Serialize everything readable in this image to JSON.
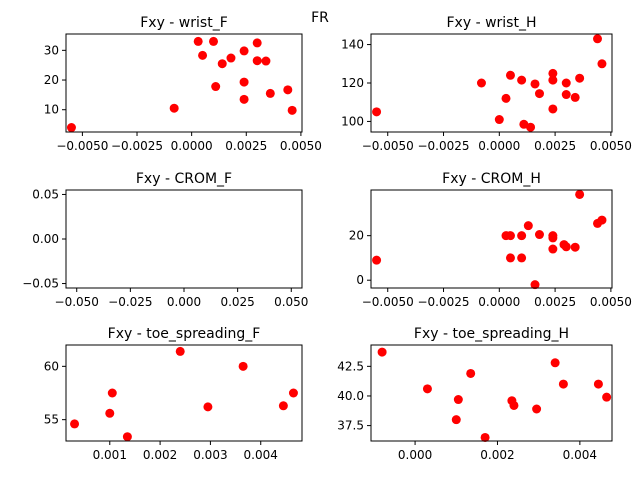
{
  "figure": {
    "suptitle": "FR"
  },
  "chart_data": [
    {
      "type": "scatter",
      "title": "Fxy - wrist_F",
      "marker_color": "#ff0000",
      "xlim": [
        -0.00575,
        0.00505
      ],
      "ylim": [
        2.5,
        35.5
      ],
      "xticks": [
        -0.005,
        -0.0025,
        0.0,
        0.0025,
        0.005
      ],
      "xtick_labels": [
        "−0.0050",
        "−0.0025",
        "0.0000",
        "0.0025",
        "0.0050"
      ],
      "yticks": [
        10,
        20,
        30
      ],
      "ytick_labels": [
        "10",
        "20",
        "30"
      ],
      "points": [
        {
          "x": -0.0055,
          "y": 4.0
        },
        {
          "x": -0.0008,
          "y": 10.5
        },
        {
          "x": 0.0003,
          "y": 33.0
        },
        {
          "x": 0.0005,
          "y": 28.3
        },
        {
          "x": 0.001,
          "y": 33.0
        },
        {
          "x": 0.0011,
          "y": 17.8
        },
        {
          "x": 0.0014,
          "y": 25.5
        },
        {
          "x": 0.0018,
          "y": 27.4
        },
        {
          "x": 0.0024,
          "y": 29.8
        },
        {
          "x": 0.0024,
          "y": 19.3
        },
        {
          "x": 0.0024,
          "y": 13.5
        },
        {
          "x": 0.003,
          "y": 32.5
        },
        {
          "x": 0.003,
          "y": 26.5
        },
        {
          "x": 0.0034,
          "y": 26.4
        },
        {
          "x": 0.0036,
          "y": 15.5
        },
        {
          "x": 0.0044,
          "y": 16.7
        },
        {
          "x": 0.0046,
          "y": 9.8
        }
      ]
    },
    {
      "type": "scatter",
      "title": "Fxy - wrist_H",
      "marker_color": "#ff0000",
      "xlim": [
        -0.00575,
        0.00505
      ],
      "ylim": [
        94.5,
        145.5
      ],
      "xticks": [
        -0.005,
        -0.0025,
        0.0,
        0.0025,
        0.005
      ],
      "xtick_labels": [
        "−0.0050",
        "−0.0025",
        "0.0000",
        "0.0025",
        "0.0050"
      ],
      "yticks": [
        100,
        120,
        140
      ],
      "ytick_labels": [
        "100",
        "120",
        "140"
      ],
      "points": [
        {
          "x": -0.0055,
          "y": 105.0
        },
        {
          "x": -0.0008,
          "y": 120.0
        },
        {
          "x": 0.0,
          "y": 101.0
        },
        {
          "x": 0.0003,
          "y": 112.0
        },
        {
          "x": 0.0005,
          "y": 124.0
        },
        {
          "x": 0.001,
          "y": 121.5
        },
        {
          "x": 0.0011,
          "y": 98.5
        },
        {
          "x": 0.0014,
          "y": 97.0
        },
        {
          "x": 0.0016,
          "y": 119.5
        },
        {
          "x": 0.0018,
          "y": 114.5
        },
        {
          "x": 0.0024,
          "y": 125.0
        },
        {
          "x": 0.0024,
          "y": 121.5
        },
        {
          "x": 0.0024,
          "y": 106.5
        },
        {
          "x": 0.003,
          "y": 120.0
        },
        {
          "x": 0.003,
          "y": 114.0
        },
        {
          "x": 0.0034,
          "y": 112.5
        },
        {
          "x": 0.0036,
          "y": 122.5
        },
        {
          "x": 0.0044,
          "y": 143.0
        },
        {
          "x": 0.0046,
          "y": 130.0
        }
      ]
    },
    {
      "type": "scatter",
      "title": "Fxy - CROM_F",
      "marker_color": "#ff0000",
      "xlim": [
        -0.055,
        0.055
      ],
      "ylim": [
        -0.055,
        0.055
      ],
      "xticks": [
        -0.05,
        -0.025,
        0.0,
        0.025,
        0.05
      ],
      "xtick_labels": [
        "−0.050",
        "−0.025",
        "0.000",
        "0.025",
        "0.050"
      ],
      "yticks": [
        -0.05,
        0.0,
        0.05
      ],
      "ytick_labels": [
        "−0.05",
        "0.00",
        "0.05"
      ],
      "points": []
    },
    {
      "type": "scatter",
      "title": "Fxy - CROM_H",
      "marker_color": "#ff0000",
      "xlim": [
        -0.00575,
        0.00505
      ],
      "ylim": [
        -3.5,
        40.5
      ],
      "xticks": [
        -0.005,
        -0.0025,
        0.0,
        0.0025,
        0.005
      ],
      "xtick_labels": [
        "−0.0050",
        "−0.0025",
        "0.0000",
        "0.0025",
        "0.0050"
      ],
      "yticks": [
        0,
        20
      ],
      "ytick_labels": [
        "0",
        "20"
      ],
      "points": [
        {
          "x": -0.0055,
          "y": 9.0
        },
        {
          "x": 0.0003,
          "y": 20.0
        },
        {
          "x": 0.0005,
          "y": 20.0
        },
        {
          "x": 0.0005,
          "y": 10.0
        },
        {
          "x": 0.001,
          "y": 20.0
        },
        {
          "x": 0.001,
          "y": 10.0
        },
        {
          "x": 0.0013,
          "y": 24.5
        },
        {
          "x": 0.0016,
          "y": -2.0
        },
        {
          "x": 0.0018,
          "y": 20.5
        },
        {
          "x": 0.0024,
          "y": 20.0
        },
        {
          "x": 0.0024,
          "y": 19.0
        },
        {
          "x": 0.0024,
          "y": 14.0
        },
        {
          "x": 0.0029,
          "y": 16.0
        },
        {
          "x": 0.003,
          "y": 15.0
        },
        {
          "x": 0.0034,
          "y": 14.8
        },
        {
          "x": 0.0036,
          "y": 38.5
        },
        {
          "x": 0.0044,
          "y": 25.5
        },
        {
          "x": 0.0046,
          "y": 27.0
        }
      ]
    },
    {
      "type": "scatter",
      "title": "Fxy - toe_spreading_F",
      "marker_color": "#ff0000",
      "xlim": [
        0.00013,
        0.00482
      ],
      "ylim": [
        53.0,
        62.0
      ],
      "xticks": [
        0.001,
        0.002,
        0.003,
        0.004
      ],
      "xtick_labels": [
        "0.001",
        "0.002",
        "0.003",
        "0.004"
      ],
      "yticks": [
        55,
        60
      ],
      "ytick_labels": [
        "55",
        "60"
      ],
      "points": [
        {
          "x": 0.0003,
          "y": 54.6
        },
        {
          "x": 0.001,
          "y": 55.6
        },
        {
          "x": 0.00105,
          "y": 57.5
        },
        {
          "x": 0.00135,
          "y": 53.4
        },
        {
          "x": 0.0024,
          "y": 61.4
        },
        {
          "x": 0.00295,
          "y": 56.2
        },
        {
          "x": 0.00365,
          "y": 60.0
        },
        {
          "x": 0.00445,
          "y": 56.3
        },
        {
          "x": 0.00465,
          "y": 57.5
        }
      ]
    },
    {
      "type": "scatter",
      "title": "Fxy - toe_spreading_H",
      "marker_color": "#ff0000",
      "xlim": [
        -0.00107,
        0.00478
      ],
      "ylim": [
        36.2,
        44.3
      ],
      "xticks": [
        0.0,
        0.002,
        0.004
      ],
      "xtick_labels": [
        "0.000",
        "0.002",
        "0.004"
      ],
      "yticks": [
        37.5,
        40.0,
        42.5
      ],
      "ytick_labels": [
        "37.5",
        "40.0",
        "42.5"
      ],
      "points": [
        {
          "x": -0.0008,
          "y": 43.7
        },
        {
          "x": 0.0003,
          "y": 40.6
        },
        {
          "x": 0.001,
          "y": 38.0
        },
        {
          "x": 0.00105,
          "y": 39.7
        },
        {
          "x": 0.00135,
          "y": 41.9
        },
        {
          "x": 0.0017,
          "y": 36.5
        },
        {
          "x": 0.00235,
          "y": 39.6
        },
        {
          "x": 0.0024,
          "y": 39.2
        },
        {
          "x": 0.00295,
          "y": 38.9
        },
        {
          "x": 0.0034,
          "y": 42.8
        },
        {
          "x": 0.0036,
          "y": 41.0
        },
        {
          "x": 0.00445,
          "y": 41.0
        },
        {
          "x": 0.00465,
          "y": 39.9
        }
      ]
    }
  ]
}
